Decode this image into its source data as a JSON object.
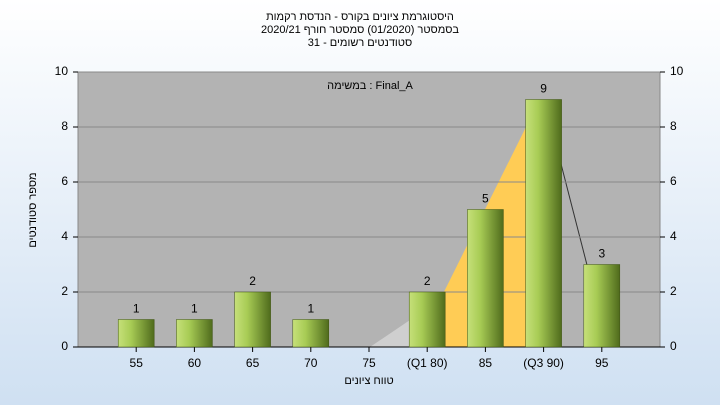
{
  "chart_data": {
    "type": "bar",
    "title": "היסטוגרמת ציונים בקורס - הנדסת רקמות",
    "subtitle": "בסמסטר  (01/2020)  סמסטר חורף  2020/21",
    "subtitle2": "סטודנטים רשומים - 31",
    "annotation": "במשימה : Final_A",
    "x_label": "טווח ציונים",
    "y_label": "מספר סטודנטים",
    "categories": [
      "55",
      "60",
      "65",
      "70",
      "75",
      "(Q1 80)",
      "85",
      "(Q3 90)",
      "95"
    ],
    "values": [
      1,
      1,
      2,
      1,
      null,
      2,
      5,
      9,
      3
    ],
    "color": "#8fb33a",
    "ylim": [
      0,
      10
    ],
    "yticks": [
      0,
      2,
      4,
      6,
      8,
      10
    ],
    "y2lim": [
      0,
      10
    ],
    "y2ticks": [
      0,
      2,
      4,
      6,
      8,
      10
    ],
    "grid": true
  }
}
